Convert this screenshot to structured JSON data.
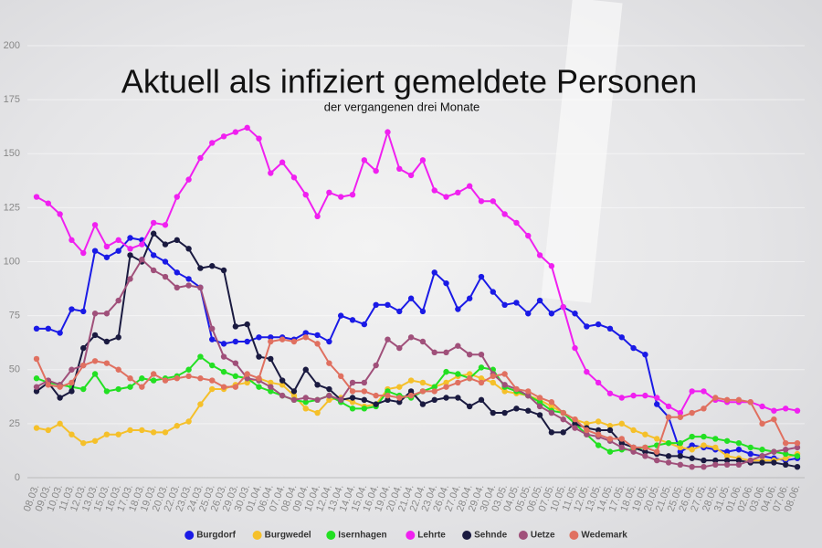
{
  "chart_data": {
    "type": "line",
    "title": "Aktuell als infiziert gemeldete Personen",
    "subtitle": "der vergangenen drei Monate",
    "categories": [
      "08.03.",
      "09.03.",
      "10.03.",
      "11.03.",
      "12.03.",
      "13.03.",
      "15.03.",
      "16.03.",
      "17.03.",
      "18.03.",
      "19.03.",
      "20.03.",
      "22.03.",
      "23.03.",
      "24.03.",
      "25.03.",
      "26.03.",
      "29.03.",
      "30.03.",
      "01.04.",
      "06.04.",
      "07.04.",
      "08.04.",
      "09.04.",
      "10.04.",
      "12.04.",
      "13.04.",
      "14.04.",
      "15.04.",
      "16.04.",
      "19.04.",
      "20.04.",
      "21.04.",
      "22.04.",
      "23.04.",
      "26.04.",
      "27.04.",
      "28.04.",
      "29.04.",
      "30.04.",
      "03.05.",
      "04.05.",
      "05.05.",
      "06.05.",
      "07.05.",
      "10.05.",
      "11.05.",
      "12.05.",
      "13.05.",
      "14.05.",
      "17.05.",
      "18.05.",
      "19.05.",
      "20.05.",
      "21.05.",
      "25.05.",
      "26.05.",
      "27.05.",
      "28.05.",
      "31.05.",
      "01.06.",
      "02.06.",
      "03.06.",
      "04.06.",
      "07.06.",
      "08.06."
    ],
    "series": [
      {
        "name": "Burgdorf",
        "color": "#1a1ae6",
        "values": [
          69,
          69,
          67,
          78,
          77,
          105,
          102,
          105,
          111,
          110,
          103,
          100,
          95,
          92,
          88,
          64,
          62,
          63,
          63,
          65,
          65,
          65,
          64,
          67,
          66,
          63,
          75,
          73,
          71,
          80,
          80,
          77,
          83,
          77,
          95,
          90,
          78,
          83,
          93,
          86,
          80,
          81,
          76,
          82,
          76,
          79,
          76,
          70,
          71,
          69,
          65,
          60,
          57,
          34,
          28,
          12,
          15,
          14,
          13,
          12,
          13,
          11,
          10,
          9,
          8,
          9
        ]
      },
      {
        "name": "Burgwedel",
        "color": "#f5c02a",
        "values": [
          23,
          22,
          25,
          20,
          16,
          17,
          20,
          20,
          22,
          22,
          21,
          21,
          24,
          26,
          34,
          41,
          41,
          43,
          44,
          46,
          44,
          43,
          38,
          32,
          30,
          36,
          37,
          35,
          33,
          34,
          41,
          42,
          45,
          44,
          42,
          44,
          47,
          48,
          46,
          44,
          40,
          39,
          38,
          36,
          33,
          30,
          27,
          25,
          26,
          24,
          25,
          22,
          20,
          18,
          16,
          14,
          13,
          15,
          14,
          10,
          9,
          8,
          8,
          8,
          9,
          11
        ]
      },
      {
        "name": "Isernhagen",
        "color": "#22e022",
        "values": [
          46,
          44,
          43,
          42,
          41,
          48,
          40,
          41,
          42,
          46,
          45,
          46,
          47,
          50,
          56,
          52,
          49,
          47,
          46,
          42,
          40,
          38,
          36,
          35,
          36,
          38,
          35,
          32,
          32,
          33,
          40,
          38,
          37,
          40,
          42,
          49,
          48,
          46,
          51,
          50,
          42,
          40,
          38,
          35,
          31,
          30,
          25,
          20,
          15,
          12,
          13,
          13,
          14,
          15,
          16,
          16,
          19,
          19,
          18,
          17,
          16,
          14,
          13,
          12,
          11,
          10
        ]
      },
      {
        "name": "Lehrte",
        "color": "#f020f0",
        "values": [
          130,
          127,
          122,
          110,
          104,
          117,
          107,
          110,
          106,
          108,
          118,
          117,
          130,
          138,
          148,
          155,
          158,
          160,
          162,
          157,
          141,
          146,
          139,
          131,
          121,
          132,
          130,
          131,
          147,
          142,
          160,
          143,
          140,
          147,
          133,
          130,
          132,
          135,
          128,
          128,
          122,
          118,
          112,
          103,
          98,
          79,
          60,
          49,
          44,
          39,
          37,
          38,
          38,
          37,
          33,
          30,
          40,
          40,
          36,
          35,
          35,
          35,
          33,
          31,
          32,
          31
        ]
      },
      {
        "name": "Sehnde",
        "color": "#1a1a40",
        "values": [
          40,
          44,
          37,
          40,
          60,
          66,
          63,
          65,
          103,
          100,
          113,
          108,
          110,
          106,
          97,
          98,
          96,
          70,
          71,
          56,
          55,
          45,
          40,
          50,
          43,
          41,
          36,
          37,
          36,
          34,
          36,
          35,
          40,
          34,
          36,
          37,
          37,
          33,
          36,
          30,
          30,
          32,
          31,
          29,
          21,
          21,
          25,
          23,
          22,
          22,
          16,
          14,
          12,
          11,
          10,
          10,
          9,
          8,
          8,
          8,
          8,
          7,
          7,
          7,
          6,
          5
        ]
      },
      {
        "name": "Uetze",
        "color": "#a0507a",
        "values": [
          42,
          45,
          43,
          50,
          52,
          76,
          76,
          82,
          92,
          101,
          96,
          93,
          88,
          89,
          88,
          69,
          56,
          53,
          46,
          45,
          42,
          38,
          36,
          37,
          36,
          38,
          36,
          44,
          44,
          52,
          64,
          60,
          65,
          63,
          58,
          58,
          61,
          57,
          57,
          48,
          43,
          41,
          38,
          33,
          30,
          27,
          23,
          20,
          19,
          17,
          14,
          12,
          10,
          8,
          7,
          6,
          5,
          5,
          6,
          6,
          6,
          8,
          10,
          12,
          13,
          14
        ]
      },
      {
        "name": "Wedemark",
        "color": "#e07060",
        "values": [
          55,
          43,
          42,
          44,
          52,
          54,
          53,
          50,
          46,
          42,
          48,
          45,
          46,
          47,
          46,
          45,
          42,
          42,
          48,
          46,
          63,
          64,
          63,
          65,
          62,
          53,
          47,
          40,
          40,
          38,
          38,
          37,
          38,
          40,
          40,
          42,
          44,
          46,
          44,
          47,
          48,
          41,
          40,
          37,
          35,
          30,
          27,
          22,
          20,
          18,
          18,
          14,
          14,
          12,
          28,
          28,
          30,
          32,
          37,
          36,
          36,
          35,
          25,
          27,
          16,
          16
        ]
      }
    ],
    "ylim": [
      0,
      200
    ],
    "yticks": [
      0,
      25,
      50,
      75,
      100,
      125,
      150,
      175,
      200
    ],
    "grid": true,
    "legend": "bottom"
  }
}
